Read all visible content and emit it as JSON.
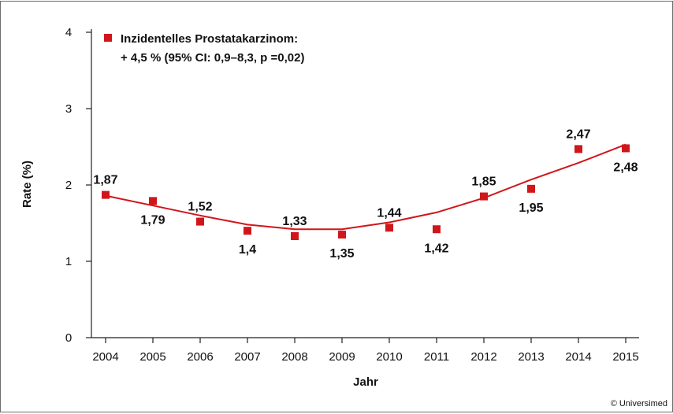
{
  "chart_data": {
    "type": "scatter",
    "x": [
      "2004",
      "2005",
      "2006",
      "2007",
      "2008",
      "2009",
      "2010",
      "2011",
      "2012",
      "2013",
      "2014",
      "2015"
    ],
    "series": [
      {
        "name": "Inzidentelles Prostatakarzinom:",
        "values": [
          1.87,
          1.79,
          1.52,
          1.4,
          1.33,
          1.35,
          1.44,
          1.42,
          1.85,
          1.95,
          2.47,
          2.48
        ],
        "data_labels": [
          "1,87",
          "1,79",
          "1,52",
          "1,4",
          "1,33",
          "1,35",
          "1,44",
          "1,42",
          "1,85",
          "1,95",
          "2,47",
          "2,48"
        ],
        "label_side": [
          "above",
          "below",
          "above",
          "below",
          "above",
          "below",
          "above",
          "below",
          "above",
          "below",
          "above",
          "below"
        ]
      }
    ],
    "trend_line": [
      1.86,
      1.73,
      1.6,
      1.48,
      1.42,
      1.42,
      1.51,
      1.64,
      1.83,
      2.07,
      2.29,
      2.53
    ],
    "legend_line2": "+ 4,5 % (95% CI: 0,9–8,3, p =0,02)",
    "xlabel": "Jahr",
    "ylabel": "Rate (%)",
    "ylim": [
      0,
      4
    ],
    "yticks": [
      "0",
      "1",
      "2",
      "3",
      "4"
    ],
    "grid": false,
    "legend_position": "top-left",
    "marker_color": "#d0161b",
    "line_color": "#d0161b"
  },
  "copyright": "© Universimed"
}
